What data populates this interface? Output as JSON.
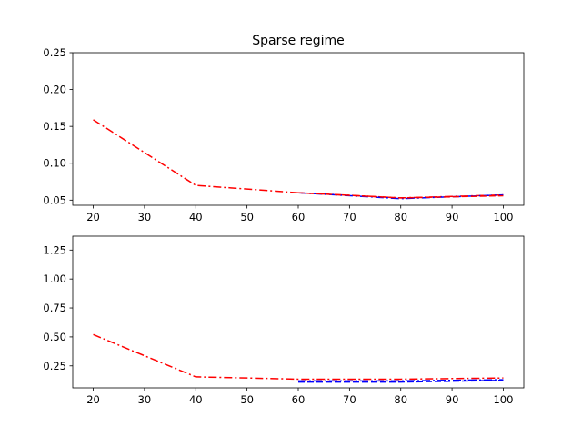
{
  "chart_data": [
    {
      "type": "line",
      "title": "Sparse regime",
      "xlabel": "",
      "ylabel": "",
      "xlim": [
        16,
        104
      ],
      "ylim": [
        0.043,
        0.25
      ],
      "xticks": [
        20,
        30,
        40,
        50,
        60,
        70,
        80,
        90,
        100
      ],
      "yticks": [
        0.05,
        0.1,
        0.15,
        0.2,
        0.25
      ],
      "ytick_labels": [
        "0.05",
        "0.10",
        "0.15",
        "0.20",
        "0.25"
      ],
      "grid": false,
      "series": [
        {
          "color": "#ff0000",
          "style": "dashdot",
          "x": [
            20,
            40,
            60,
            80,
            100
          ],
          "y": [
            0.159,
            0.07,
            0.06,
            0.053,
            0.057
          ]
        },
        {
          "color": "#0000ff",
          "style": "dashdot",
          "x": [
            60,
            80,
            100
          ],
          "y": [
            0.06,
            0.052,
            0.057
          ]
        },
        {
          "color": "#ff0000",
          "style": "dashed",
          "x": [
            60,
            80,
            100
          ],
          "y": [
            0.06,
            0.053,
            0.056
          ]
        }
      ]
    },
    {
      "type": "line",
      "title": "",
      "xlabel": "",
      "ylabel": "",
      "xlim": [
        16,
        104
      ],
      "ylim": [
        0.06,
        1.37
      ],
      "xticks": [
        20,
        30,
        40,
        50,
        60,
        70,
        80,
        90,
        100
      ],
      "yticks": [
        0.25,
        0.5,
        0.75,
        1.0,
        1.25
      ],
      "ytick_labels": [
        "0.25",
        "0.50",
        "0.75",
        "1.00",
        "1.25"
      ],
      "grid": false,
      "series": [
        {
          "color": "#ff0000",
          "style": "dashdot",
          "x": [
            20,
            40,
            60,
            80,
            100
          ],
          "y": [
            0.52,
            0.155,
            0.135,
            0.135,
            0.145
          ]
        },
        {
          "color": "#0000ff",
          "style": "dashdot",
          "x": [
            60,
            80,
            100
          ],
          "y": [
            0.12,
            0.12,
            0.13
          ]
        },
        {
          "color": "#0000ff",
          "style": "dashed",
          "x": [
            60,
            80,
            100
          ],
          "y": [
            0.11,
            0.11,
            0.125
          ]
        }
      ]
    }
  ]
}
